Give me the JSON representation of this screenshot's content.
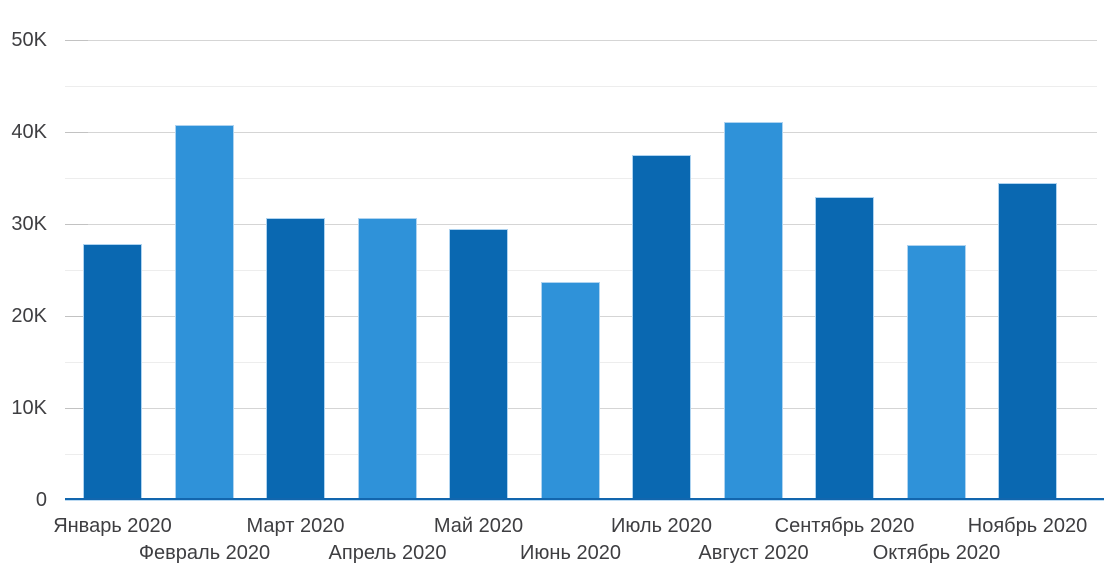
{
  "chart_data": {
    "type": "bar",
    "title": "",
    "xlabel": "",
    "ylabel": "",
    "categories": [
      "Январь 2020",
      "Февраль 2020",
      "Март 2020",
      "Апрель 2020",
      "Май 2020",
      "Июнь 2020",
      "Июль 2020",
      "Август 2020",
      "Сентябрь 2020",
      "Октябрь 2020",
      "Ноябрь 2020"
    ],
    "values": [
      27800,
      40800,
      30700,
      30700,
      29500,
      23700,
      37500,
      41100,
      32900,
      27700,
      34500
    ],
    "ylim": [
      0,
      50000
    ],
    "y_major_tick_step": 10000,
    "y_minor_tick_step": 5000,
    "y_tick_labels": [
      "0",
      "10K",
      "20K",
      "30K",
      "40K",
      "50K"
    ],
    "grid": "horizontal",
    "legend_position": "none",
    "bar_color_pattern": "alternating",
    "x_label_rows": "staggered-two-rows"
  },
  "colors": {
    "bar_dark": "#0a68b1",
    "bar_light": "#2f92d9",
    "bar_stroke": "#aed3f0",
    "axis_line": "#1266ae",
    "axis_line_light": "#bcdaf2",
    "gridline_major": "#d5d5d5",
    "gridline_minor": "#ededed",
    "tick": "#c2c2c2",
    "label_text": "#3e3e41",
    "background": "#ffffff"
  }
}
